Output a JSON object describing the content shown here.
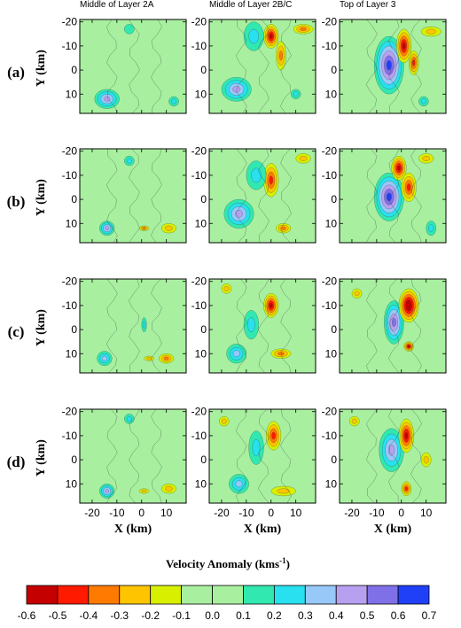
{
  "chart_data": {
    "type": "heatmap",
    "column_titles": [
      "Middle of Layer 2A",
      "Middle of Layer 2B/C",
      "Top of Layer 3"
    ],
    "row_labels": [
      "(a)",
      "(b)",
      "(c)",
      "(d)"
    ],
    "xlabel": "X (km)",
    "ylabel": "Y (km)",
    "xlim": [
      -25,
      18
    ],
    "ylim": [
      -21,
      18
    ],
    "y_inverted": true,
    "xticks": [
      -20,
      -10,
      0,
      10
    ],
    "yticks": [
      -20,
      -10,
      0,
      10
    ],
    "colorbar": {
      "title": "Velocity Anomaly (kms",
      "title_sup": "-1",
      "title_close": ")",
      "ticks": [
        "-0.6",
        "-0.5",
        "-0.4",
        "-0.3",
        "-0.2",
        "-0.1",
        "0.0",
        "0.1",
        "0.2",
        "0.3",
        "0.4",
        "0.5",
        "0.6",
        "0.7"
      ],
      "colors": [
        "#c40000",
        "#ff1a00",
        "#ff7a00",
        "#ffc400",
        "#d8f000",
        "#a8f0a0",
        "#a8f0a0",
        "#30e8b0",
        "#28e0f0",
        "#98c8f8",
        "#b8a0f0",
        "#8070e8",
        "#2040f8"
      ]
    },
    "background_value": 0.0,
    "panels": [
      {
        "row": 0,
        "col": 0,
        "anomalies": [
          {
            "x": -14,
            "y": 12,
            "v": 0.45,
            "rx": 5,
            "ry": 4
          },
          {
            "x": -5,
            "y": -17,
            "v": 0.15,
            "rx": 2,
            "ry": 2
          },
          {
            "x": 13,
            "y": 13,
            "v": 0.2,
            "rx": 2,
            "ry": 2
          }
        ]
      },
      {
        "row": 0,
        "col": 1,
        "anomalies": [
          {
            "x": 0,
            "y": -14,
            "v": -0.55,
            "rx": 3,
            "ry": 5
          },
          {
            "x": 4,
            "y": -6,
            "v": -0.3,
            "rx": 2,
            "ry": 6
          },
          {
            "x": -7,
            "y": -14,
            "v": 0.25,
            "rx": 4,
            "ry": 6
          },
          {
            "x": -14,
            "y": 8,
            "v": 0.45,
            "rx": 6,
            "ry": 5
          },
          {
            "x": 13,
            "y": -17,
            "v": -0.3,
            "rx": 4,
            "ry": 2
          },
          {
            "x": 10,
            "y": 10,
            "v": 0.2,
            "rx": 2,
            "ry": 2
          }
        ]
      },
      {
        "row": 0,
        "col": 2,
        "anomalies": [
          {
            "x": -5,
            "y": -2,
            "v": 0.6,
            "rx": 6,
            "ry": 12
          },
          {
            "x": 1,
            "y": -10,
            "v": -0.55,
            "rx": 3,
            "ry": 7
          },
          {
            "x": 5,
            "y": -3,
            "v": -0.45,
            "rx": 2,
            "ry": 5
          },
          {
            "x": 12,
            "y": -16,
            "v": -0.25,
            "rx": 4,
            "ry": 2
          },
          {
            "x": 9,
            "y": 13,
            "v": 0.2,
            "rx": 2,
            "ry": 2
          }
        ]
      },
      {
        "row": 1,
        "col": 0,
        "anomalies": [
          {
            "x": -14,
            "y": 12,
            "v": 0.4,
            "rx": 3,
            "ry": 3
          },
          {
            "x": -5,
            "y": -16,
            "v": 0.2,
            "rx": 2,
            "ry": 2
          },
          {
            "x": 1,
            "y": 12,
            "v": -0.3,
            "rx": 2,
            "ry": 1
          },
          {
            "x": 11,
            "y": 12,
            "v": -0.25,
            "rx": 3,
            "ry": 2
          }
        ]
      },
      {
        "row": 1,
        "col": 1,
        "anomalies": [
          {
            "x": 0,
            "y": -8,
            "v": -0.45,
            "rx": 3,
            "ry": 7
          },
          {
            "x": -6,
            "y": -10,
            "v": 0.25,
            "rx": 4,
            "ry": 6
          },
          {
            "x": -13,
            "y": 6,
            "v": 0.4,
            "rx": 6,
            "ry": 6
          },
          {
            "x": 5,
            "y": 12,
            "v": -0.3,
            "rx": 3,
            "ry": 2
          },
          {
            "x": 13,
            "y": -17,
            "v": -0.25,
            "rx": 3,
            "ry": 2
          }
        ]
      },
      {
        "row": 1,
        "col": 2,
        "anomalies": [
          {
            "x": -5,
            "y": -1,
            "v": 0.65,
            "rx": 6,
            "ry": 10
          },
          {
            "x": -1,
            "y": -13,
            "v": -0.55,
            "rx": 3,
            "ry": 5
          },
          {
            "x": 3,
            "y": -5,
            "v": -0.4,
            "rx": 3,
            "ry": 6
          },
          {
            "x": 12,
            "y": 12,
            "v": 0.2,
            "rx": 2,
            "ry": 3
          },
          {
            "x": 10,
            "y": -17,
            "v": -0.2,
            "rx": 3,
            "ry": 2
          }
        ]
      },
      {
        "row": 2,
        "col": 0,
        "anomalies": [
          {
            "x": -15,
            "y": 12,
            "v": 0.35,
            "rx": 3,
            "ry": 3
          },
          {
            "x": 1,
            "y": -2,
            "v": 0.2,
            "rx": 1,
            "ry": 3
          },
          {
            "x": 10,
            "y": 12,
            "v": -0.3,
            "rx": 3,
            "ry": 2
          },
          {
            "x": 3,
            "y": 12,
            "v": -0.25,
            "rx": 2,
            "ry": 1
          }
        ]
      },
      {
        "row": 2,
        "col": 1,
        "anomalies": [
          {
            "x": 0,
            "y": -10,
            "v": -0.5,
            "rx": 3,
            "ry": 5
          },
          {
            "x": -8,
            "y": -2,
            "v": 0.25,
            "rx": 3,
            "ry": 6
          },
          {
            "x": -14,
            "y": 10,
            "v": 0.35,
            "rx": 4,
            "ry": 4
          },
          {
            "x": 4,
            "y": 10,
            "v": -0.3,
            "rx": 4,
            "ry": 2
          },
          {
            "x": -18,
            "y": -17,
            "v": -0.2,
            "rx": 2,
            "ry": 2
          }
        ]
      },
      {
        "row": 2,
        "col": 2,
        "anomalies": [
          {
            "x": -3,
            "y": -3,
            "v": 0.5,
            "rx": 4,
            "ry": 9
          },
          {
            "x": 3,
            "y": -10,
            "v": -0.6,
            "rx": 4,
            "ry": 7
          },
          {
            "x": 3,
            "y": 7,
            "v": -0.55,
            "rx": 2,
            "ry": 2
          },
          {
            "x": -18,
            "y": -15,
            "v": -0.2,
            "rx": 2,
            "ry": 2
          }
        ]
      },
      {
        "row": 3,
        "col": 0,
        "anomalies": [
          {
            "x": -14,
            "y": 13,
            "v": 0.4,
            "rx": 3,
            "ry": 3
          },
          {
            "x": -5,
            "y": -17,
            "v": 0.2,
            "rx": 2,
            "ry": 2
          },
          {
            "x": 1,
            "y": 13,
            "v": -0.25,
            "rx": 2,
            "ry": 1
          },
          {
            "x": 11,
            "y": 12,
            "v": -0.2,
            "rx": 3,
            "ry": 2
          }
        ]
      },
      {
        "row": 3,
        "col": 1,
        "anomalies": [
          {
            "x": 1,
            "y": -10,
            "v": -0.4,
            "rx": 3,
            "ry": 6
          },
          {
            "x": -6,
            "y": -5,
            "v": 0.25,
            "rx": 3,
            "ry": 7
          },
          {
            "x": -13,
            "y": 10,
            "v": 0.35,
            "rx": 4,
            "ry": 4
          },
          {
            "x": 5,
            "y": 13,
            "v": -0.2,
            "rx": 5,
            "ry": 2
          },
          {
            "x": -19,
            "y": -16,
            "v": -0.2,
            "rx": 2,
            "ry": 2
          }
        ]
      },
      {
        "row": 3,
        "col": 2,
        "anomalies": [
          {
            "x": -4,
            "y": -4,
            "v": 0.4,
            "rx": 5,
            "ry": 9
          },
          {
            "x": 2,
            "y": -10,
            "v": -0.5,
            "rx": 3,
            "ry": 7
          },
          {
            "x": 2,
            "y": 12,
            "v": -0.45,
            "rx": 2,
            "ry": 3
          },
          {
            "x": -19,
            "y": -16,
            "v": -0.25,
            "rx": 2,
            "ry": 2
          },
          {
            "x": 10,
            "y": 0,
            "v": -0.2,
            "rx": 2,
            "ry": 3
          }
        ]
      }
    ]
  }
}
